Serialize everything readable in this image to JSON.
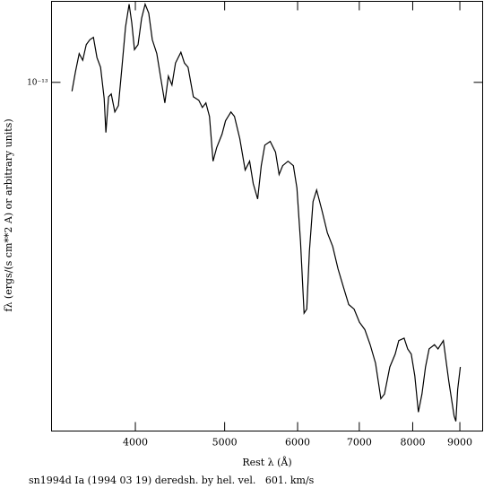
{
  "chart_data": {
    "type": "line",
    "xlabel": "Rest λ (Å)",
    "ylabel": "fλ (ergs/(s cm**2 A) or arbitrary units)",
    "annotation": "sn1994d Ia (1994 03 19) deredsh. by hel. vel.   601. km/s",
    "xscale": "log",
    "yscale": "log",
    "xlim": [
      3244,
      9528
    ],
    "ylim": [
      1.1e-14,
      1.67e-13
    ],
    "xticks": [
      4000,
      5000,
      6000,
      7000,
      8000,
      9000
    ],
    "yticks": [
      {
        "value": 1e-13,
        "label": "10⁻¹³"
      }
    ],
    "color": "#000000",
    "x": [
      3414,
      3444,
      3476,
      3507,
      3538,
      3570,
      3602,
      3634,
      3667,
      3700,
      3716,
      3741,
      3766,
      3800,
      3834,
      3868,
      3903,
      3938,
      3964,
      3991,
      4027,
      4063,
      4099,
      4136,
      4173,
      4220,
      4267,
      4306,
      4344,
      4383,
      4422,
      4482,
      4522,
      4563,
      4624,
      4687,
      4729,
      4771,
      4814,
      4857,
      4901,
      4967,
      5011,
      5079,
      5124,
      5193,
      5263,
      5322,
      5370,
      5430,
      5479,
      5528,
      5603,
      5678,
      5729,
      5780,
      5858,
      5937,
      5990,
      6044,
      6098,
      6139,
      6180,
      6236,
      6292,
      6377,
      6463,
      6550,
      6638,
      6727,
      6818,
      6910,
      7003,
      7098,
      7193,
      7290,
      7388,
      7455,
      7555,
      7657,
      7726,
      7830,
      7900,
      7971,
      8042,
      8114,
      8187,
      8260,
      8334,
      8447,
      8522,
      8637,
      8754,
      8872,
      8911,
      8951,
      9011
    ],
    "values": [
      9.45e-14,
      1.07e-13,
      1.2e-13,
      1.15e-13,
      1.27e-13,
      1.31e-13,
      1.33e-13,
      1.17e-13,
      1.1e-13,
      9.03e-14,
      7.28e-14,
      9.13e-14,
      9.29e-14,
      8.29e-14,
      8.63e-14,
      1.1e-13,
      1.42e-13,
      1.64e-13,
      1.46e-13,
      1.23e-13,
      1.27e-13,
      1.5e-13,
      1.64e-13,
      1.55e-13,
      1.31e-13,
      1.2e-13,
      1.01e-13,
      8.78e-14,
      1.04e-13,
      9.83e-14,
      1.13e-13,
      1.21e-13,
      1.13e-13,
      1.1e-13,
      9.13e-14,
      8.93e-14,
      8.53e-14,
      8.78e-14,
      8.06e-14,
      6.07e-14,
      6.61e-14,
      7.2e-14,
      7.84e-14,
      8.29e-14,
      8.06e-14,
      7e-14,
      5.74e-14,
      6.07e-14,
      5.27e-14,
      4.78e-14,
      5.9e-14,
      6.72e-14,
      6.88e-14,
      6.43e-14,
      5.58e-14,
      5.9e-14,
      6.07e-14,
      5.9e-14,
      5.12e-14,
      3.64e-14,
      2.32e-14,
      2.38e-14,
      3.44e-14,
      4.7e-14,
      5.06e-14,
      4.44e-14,
      3.86e-14,
      3.54e-14,
      3.07e-14,
      2.74e-14,
      2.45e-14,
      2.38e-14,
      2.19e-14,
      2.09e-14,
      1.9e-14,
      1.69e-14,
      1.35e-14,
      1.39e-14,
      1.65e-14,
      1.79e-14,
      1.95e-14,
      1.98e-14,
      1.85e-14,
      1.79e-14,
      1.56e-14,
      1.24e-14,
      1.39e-14,
      1.65e-14,
      1.85e-14,
      1.9e-14,
      1.85e-14,
      1.95e-14,
      1.51e-14,
      1.21e-14,
      1.17e-14,
      1.43e-14,
      1.65e-14
    ]
  }
}
